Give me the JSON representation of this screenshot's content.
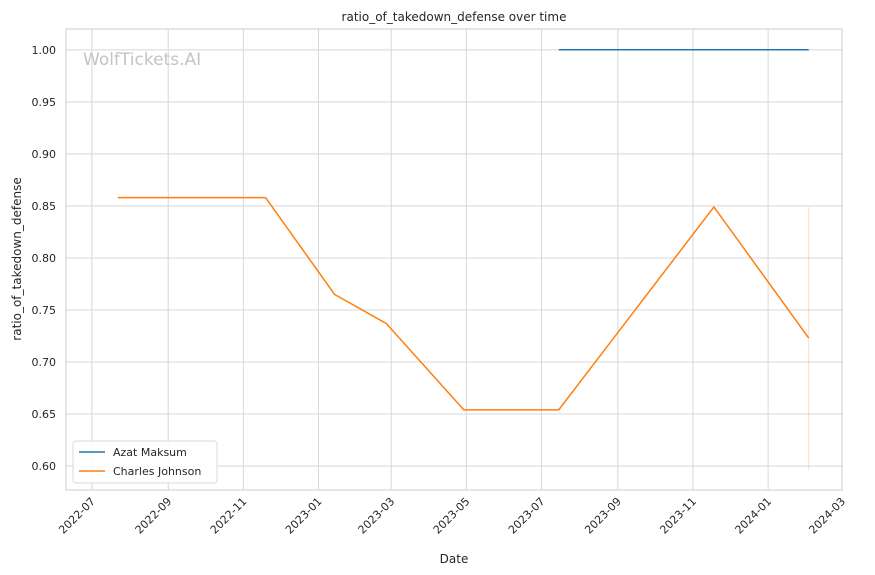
{
  "chart_data": {
    "type": "line",
    "title": "ratio_of_takedown_defense over time",
    "xlabel": "Date",
    "ylabel": "ratio_of_takedown_defense",
    "watermark": "WolfTickets.AI",
    "xlim": [
      "2022-06-10",
      "2024-03-01"
    ],
    "ylim": [
      0.577,
      1.02
    ],
    "x_ticks": [
      "2022-07",
      "2022-09",
      "2022-11",
      "2023-01",
      "2023-03",
      "2023-05",
      "2023-07",
      "2023-09",
      "2023-11",
      "2024-01",
      "2024-03"
    ],
    "x_tick_dates": [
      "2022-07-01",
      "2022-09-01",
      "2022-11-01",
      "2023-01-01",
      "2023-03-01",
      "2023-05-01",
      "2023-07-01",
      "2023-09-01",
      "2023-11-01",
      "2024-01-01",
      "2024-03-01"
    ],
    "y_ticks": [
      "0.60",
      "0.65",
      "0.70",
      "0.75",
      "0.80",
      "0.85",
      "0.90",
      "0.95",
      "1.00"
    ],
    "grid": true,
    "legend_position": "lower-left",
    "series": [
      {
        "name": "Azat Maksum",
        "color": "#1f77b4",
        "points": [
          {
            "x": "2023-07-15",
            "y": 1.0
          },
          {
            "x": "2024-02-03",
            "y": 1.0
          }
        ]
      },
      {
        "name": "Charles Johnson",
        "color": "#ff7f0e",
        "points": [
          {
            "x": "2022-07-22",
            "y": 0.858
          },
          {
            "x": "2022-11-19",
            "y": 0.858
          },
          {
            "x": "2023-01-14",
            "y": 0.765
          },
          {
            "x": "2023-02-25",
            "y": 0.737
          },
          {
            "x": "2023-04-29",
            "y": 0.654
          },
          {
            "x": "2023-07-15",
            "y": 0.654
          },
          {
            "x": "2023-11-18",
            "y": 0.849
          },
          {
            "x": "2024-02-03",
            "y": 0.723
          }
        ]
      }
    ],
    "vertical_marker": {
      "x": "2024-02-03",
      "y_range": [
        0.596,
        0.849
      ],
      "color": "#ff7f0e"
    }
  }
}
